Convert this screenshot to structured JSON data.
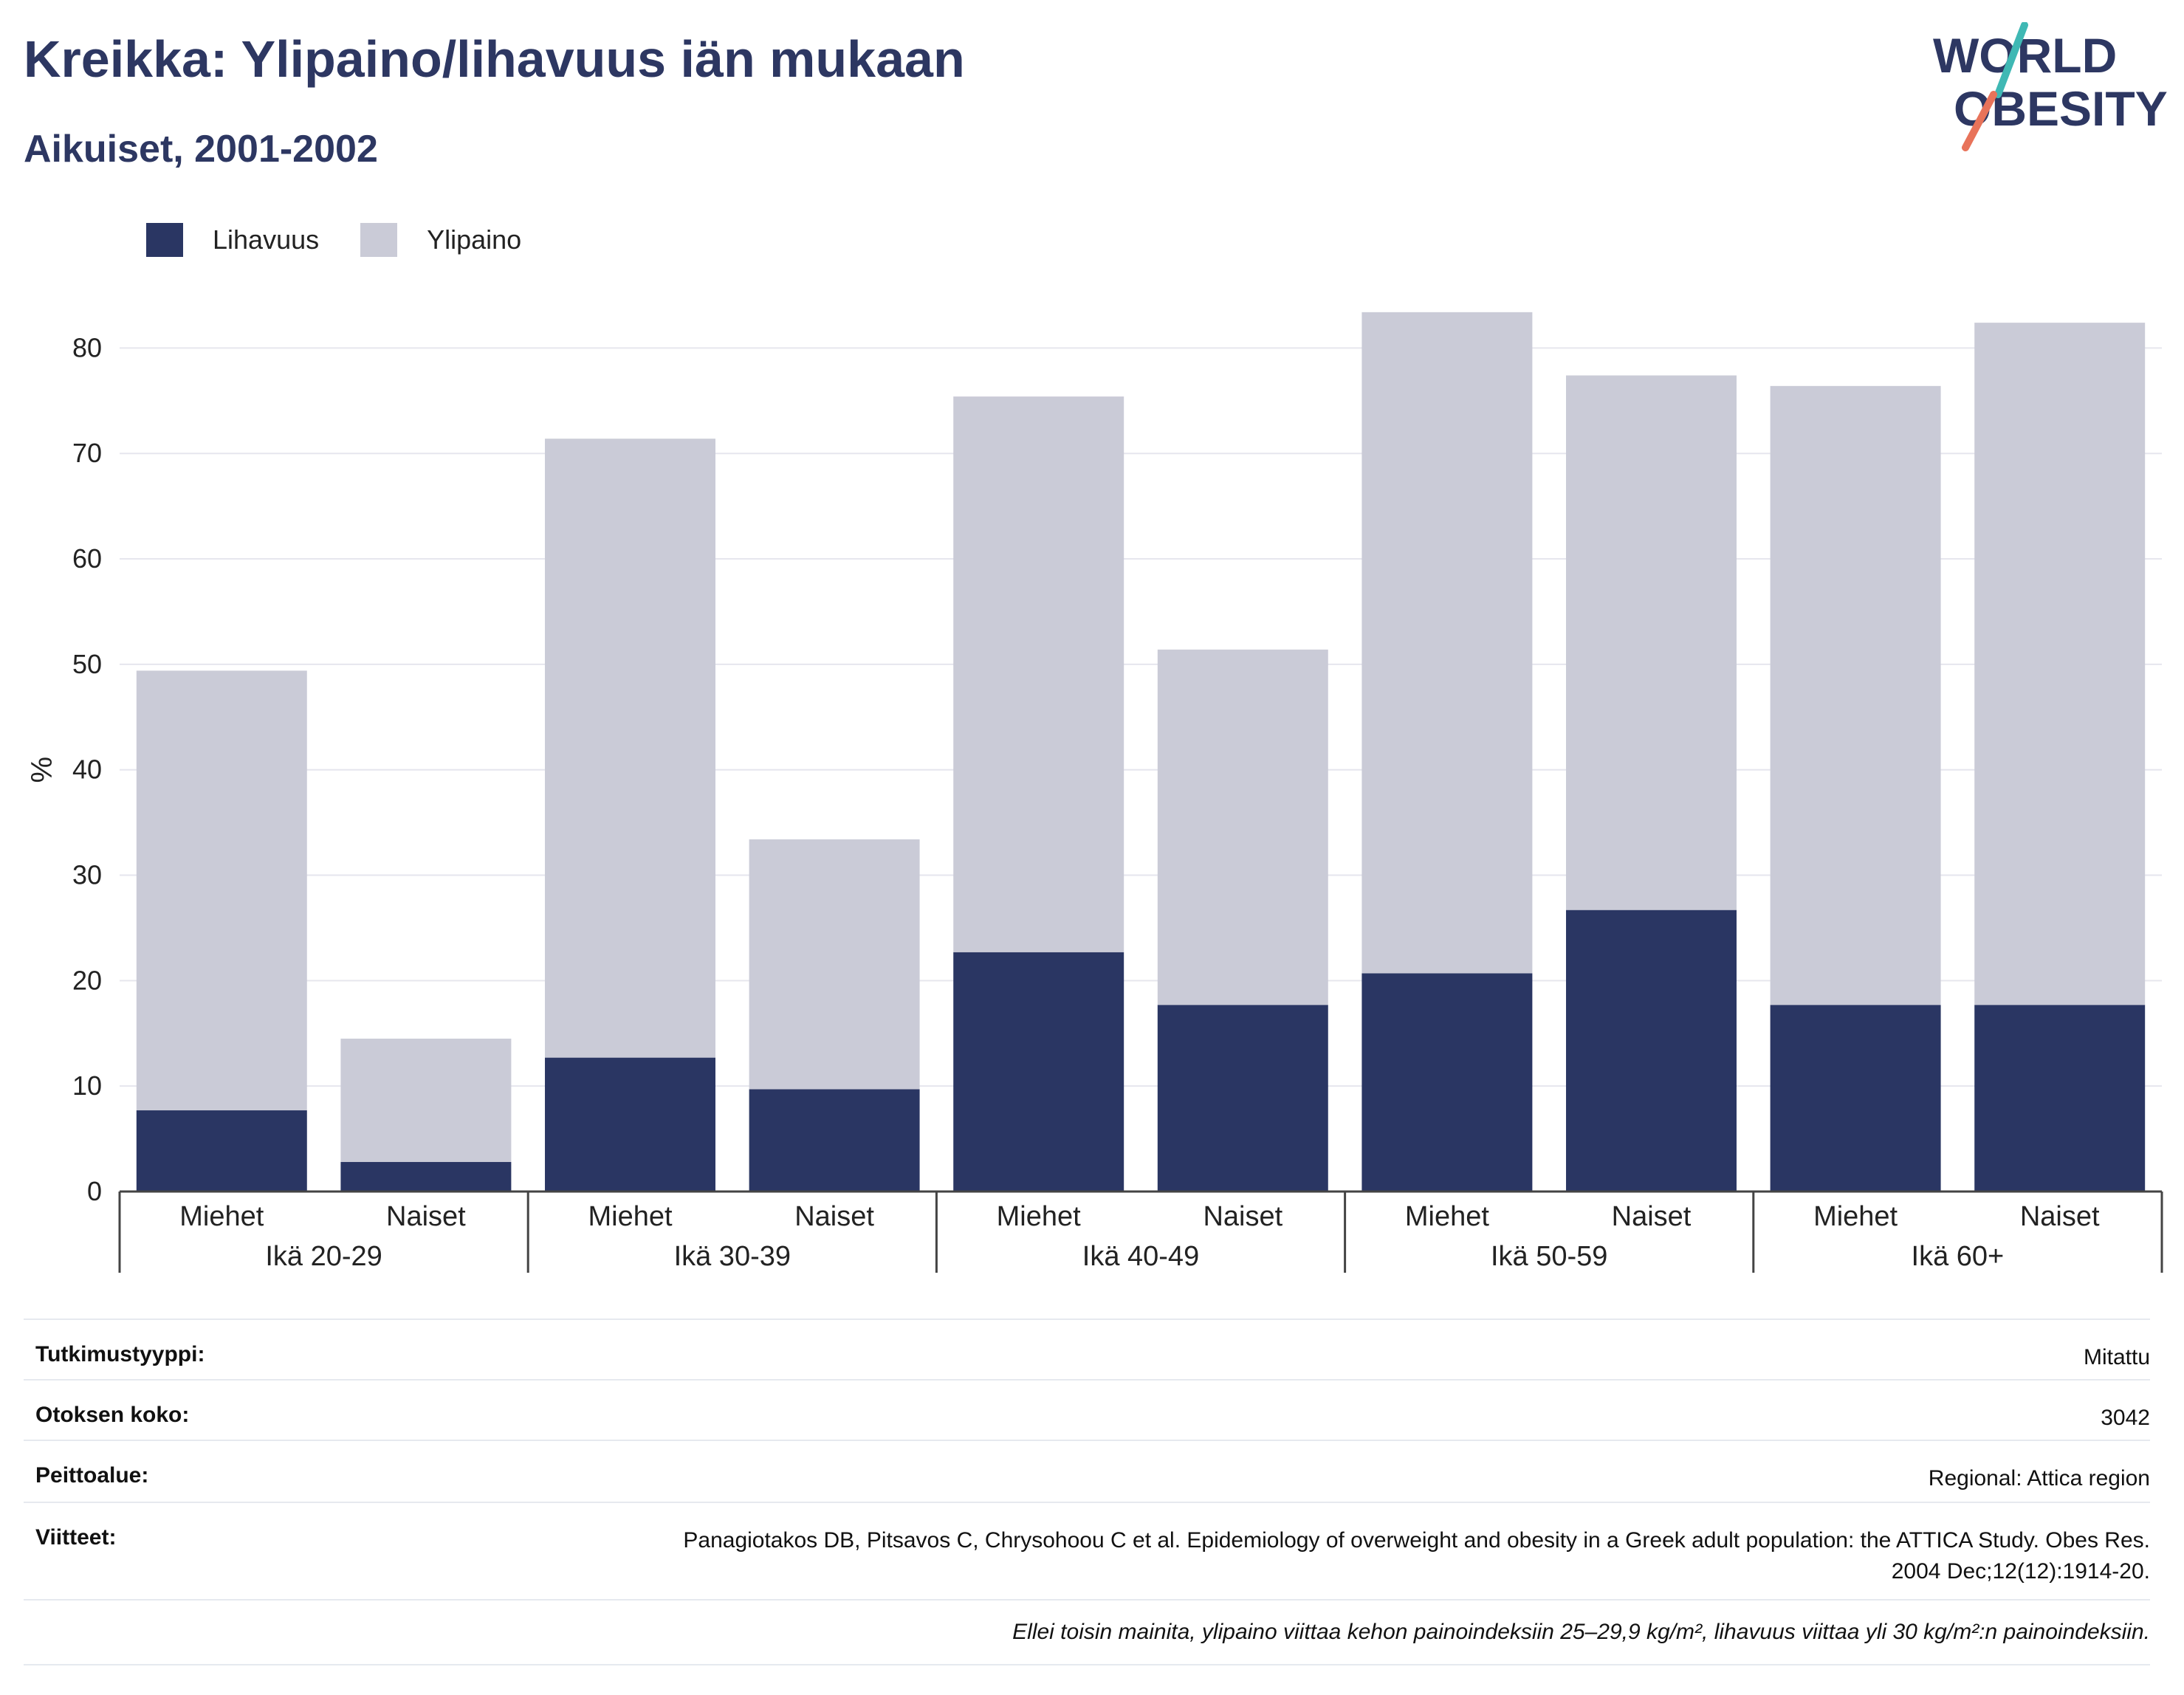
{
  "title": "Kreikka: Ylipaino/lihavuus iän mukaan",
  "subtitle": "Aikuiset, 2001-2002",
  "logo": {
    "line1": "WORLD",
    "line2": "OBESITY",
    "accent_teal": "#3fb8b4",
    "accent_red": "#e8735a"
  },
  "legend": [
    {
      "label": "Lihavuus",
      "color": "#2a3663"
    },
    {
      "label": "Ylipaino",
      "color": "#cacbd7"
    }
  ],
  "chart_data": {
    "type": "bar",
    "stacked": true,
    "ylabel": "%",
    "ylim": [
      0,
      85
    ],
    "yticks": [
      0,
      10,
      20,
      30,
      40,
      50,
      60,
      70,
      80
    ],
    "grid": true,
    "groups": [
      "Ikä 20-29",
      "Ikä 30-39",
      "Ikä 40-49",
      "Ikä 50-59",
      "Ikä 60+"
    ],
    "categories": [
      "Miehet",
      "Naiset",
      "Miehet",
      "Naiset",
      "Miehet",
      "Naiset",
      "Miehet",
      "Naiset",
      "Miehet",
      "Naiset"
    ],
    "series": [
      {
        "name": "Lihavuus",
        "color": "#2a3663",
        "values": [
          7.7,
          2.8,
          12.7,
          9.7,
          22.7,
          17.7,
          20.7,
          26.7,
          17.7,
          17.7
        ]
      },
      {
        "name": "Ylipaino",
        "color": "#cacbd7",
        "values": [
          41.7,
          11.7,
          58.7,
          23.7,
          52.7,
          33.7,
          62.7,
          50.7,
          58.7,
          64.7
        ]
      }
    ]
  },
  "info": [
    {
      "label": "Tutkimustyyppi:",
      "value": "Mitattu"
    },
    {
      "label": "Otoksen koko:",
      "value": "3042"
    },
    {
      "label": "Peittoalue:",
      "value": "Regional: Attica region"
    },
    {
      "label": "Viitteet:",
      "value": "Panagiotakos DB, Pitsavos C, Chrysohoou C et al. Epidemiology of overweight and obesity in a Greek adult population: the ATTICA Study. Obes Res. 2004 Dec;12(12):1914-20."
    }
  ],
  "note": "Ellei toisin mainita, ylipaino viittaa kehon painoindeksiin 25–29,9 kg/m², lihavuus viittaa yli 30 kg/m²:n painoindeksiin."
}
